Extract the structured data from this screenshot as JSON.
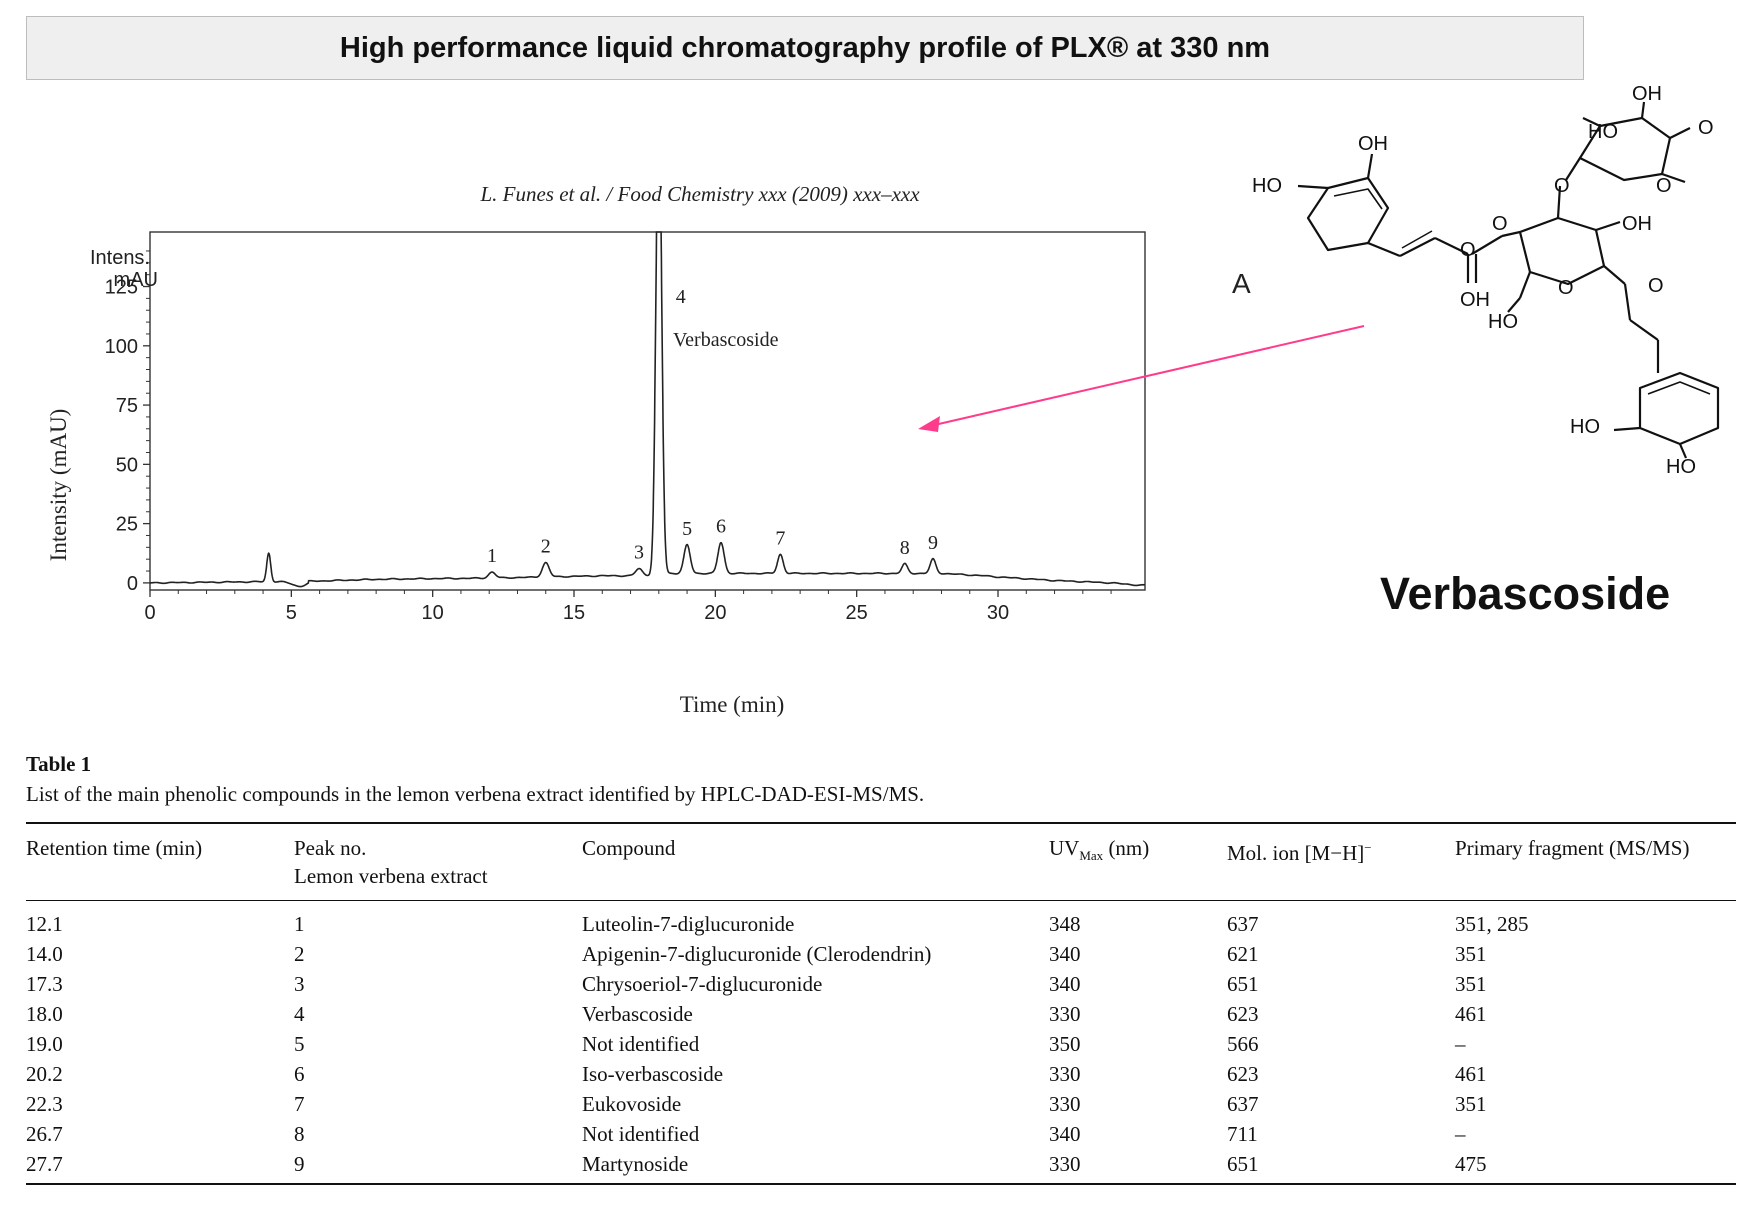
{
  "banner": {
    "title": "High performance liquid chromatography profile of PLX® at 330 nm"
  },
  "citation": "L. Funes et al. / Food Chemistry xxx (2009) xxx–xxx",
  "chart_data": {
    "type": "line",
    "panel_label": "A",
    "xlabel": "Time (min)",
    "ylabel": "Intensity (mAU)",
    "y_unit_label_line1": "Intens.",
    "y_unit_label_line2": "mAU",
    "xlim": [
      0,
      35
    ],
    "ylim": [
      -5,
      150
    ],
    "xticks": [
      0,
      5,
      10,
      15,
      20,
      25,
      30
    ],
    "yticks": [
      0,
      25,
      50,
      75,
      100,
      125
    ],
    "grid": false,
    "baseline": [
      [
        0,
        0
      ],
      [
        4,
        0.5
      ],
      [
        5,
        0.5
      ],
      [
        6,
        0.8
      ],
      [
        8,
        1.5
      ],
      [
        10,
        1.8
      ],
      [
        12,
        2
      ],
      [
        14,
        2.5
      ],
      [
        16,
        3
      ],
      [
        17.5,
        3
      ],
      [
        18.4,
        4
      ],
      [
        20,
        4
      ],
      [
        22,
        4
      ],
      [
        24,
        4
      ],
      [
        26,
        4
      ],
      [
        28,
        4
      ],
      [
        29.5,
        3
      ],
      [
        30,
        2.5
      ],
      [
        32,
        1
      ],
      [
        34,
        0
      ],
      [
        35,
        -1
      ]
    ],
    "peaks": [
      {
        "label": "",
        "rt": 4.2,
        "height": 12,
        "width": 0.07
      },
      {
        "label": "1",
        "rt": 12.1,
        "height": 2.5,
        "width": 0.12
      },
      {
        "label": "2",
        "rt": 14.0,
        "height": 6,
        "width": 0.12
      },
      {
        "label": "3",
        "rt": 17.3,
        "height": 3,
        "width": 0.12
      },
      {
        "label": "4",
        "rt": 18.0,
        "height": 200,
        "width": 0.1
      },
      {
        "label": "5",
        "rt": 19.0,
        "height": 12,
        "width": 0.11
      },
      {
        "label": "6",
        "rt": 20.2,
        "height": 13,
        "width": 0.11
      },
      {
        "label": "7",
        "rt": 22.3,
        "height": 8,
        "width": 0.1
      },
      {
        "label": "8",
        "rt": 26.7,
        "height": 4,
        "width": 0.1
      },
      {
        "label": "9",
        "rt": 27.7,
        "height": 6,
        "width": 0.1
      }
    ],
    "annotations": [
      {
        "text": "4",
        "x": 18.6,
        "y": 118
      },
      {
        "text": "Verbascoside",
        "x": 18.5,
        "y": 100
      }
    ]
  },
  "molecule": {
    "name": "Verbascoside",
    "atom_labels": [
      "OH",
      "HO",
      "OH",
      "HO",
      "OH",
      "O",
      "O",
      "O",
      "O",
      "O",
      "O",
      "OH",
      "HO",
      "O",
      "HO",
      "HO"
    ]
  },
  "table": {
    "title": "Table 1",
    "caption": "List of the main phenolic compounds in the lemon verbena extract identified by HPLC-DAD-ESI-MS/MS.",
    "headers": {
      "retention": "Retention time (min)",
      "peak_line1": "Peak no.",
      "peak_line2": "Lemon verbena extract",
      "compound": "Compound",
      "uv_main": "UV",
      "uv_sub": "Max",
      "uv_unit": " (nm)",
      "molion_main": "Mol. ion [M−H]",
      "molion_sup": "−",
      "fragment": "Primary fragment (MS/MS)"
    },
    "rows": [
      [
        "12.1",
        "1",
        "Luteolin-7-diglucuronide",
        "348",
        "637",
        "351, 285"
      ],
      [
        "14.0",
        "2",
        "Apigenin-7-diglucuronide (Clerodendrin)",
        "340",
        "621",
        "351"
      ],
      [
        "17.3",
        "3",
        "Chrysoeriol-7-diglucuronide",
        "340",
        "651",
        "351"
      ],
      [
        "18.0",
        "4",
        "Verbascoside",
        "330",
        "623",
        "461"
      ],
      [
        "19.0",
        "5",
        "Not identified",
        "350",
        "566",
        "–"
      ],
      [
        "20.2",
        "6",
        "Iso-verbascoside",
        "330",
        "623",
        "461"
      ],
      [
        "22.3",
        "7",
        "Eukovoside",
        "330",
        "637",
        "351"
      ],
      [
        "26.7",
        "8",
        "Not identified",
        "340",
        "711",
        "–"
      ],
      [
        "27.7",
        "9",
        "Martynoside",
        "330",
        "651",
        "475"
      ]
    ]
  },
  "colors": {
    "arrow": "#ff3c8c",
    "trace": "#222222",
    "banner_bg": "#efefef"
  }
}
